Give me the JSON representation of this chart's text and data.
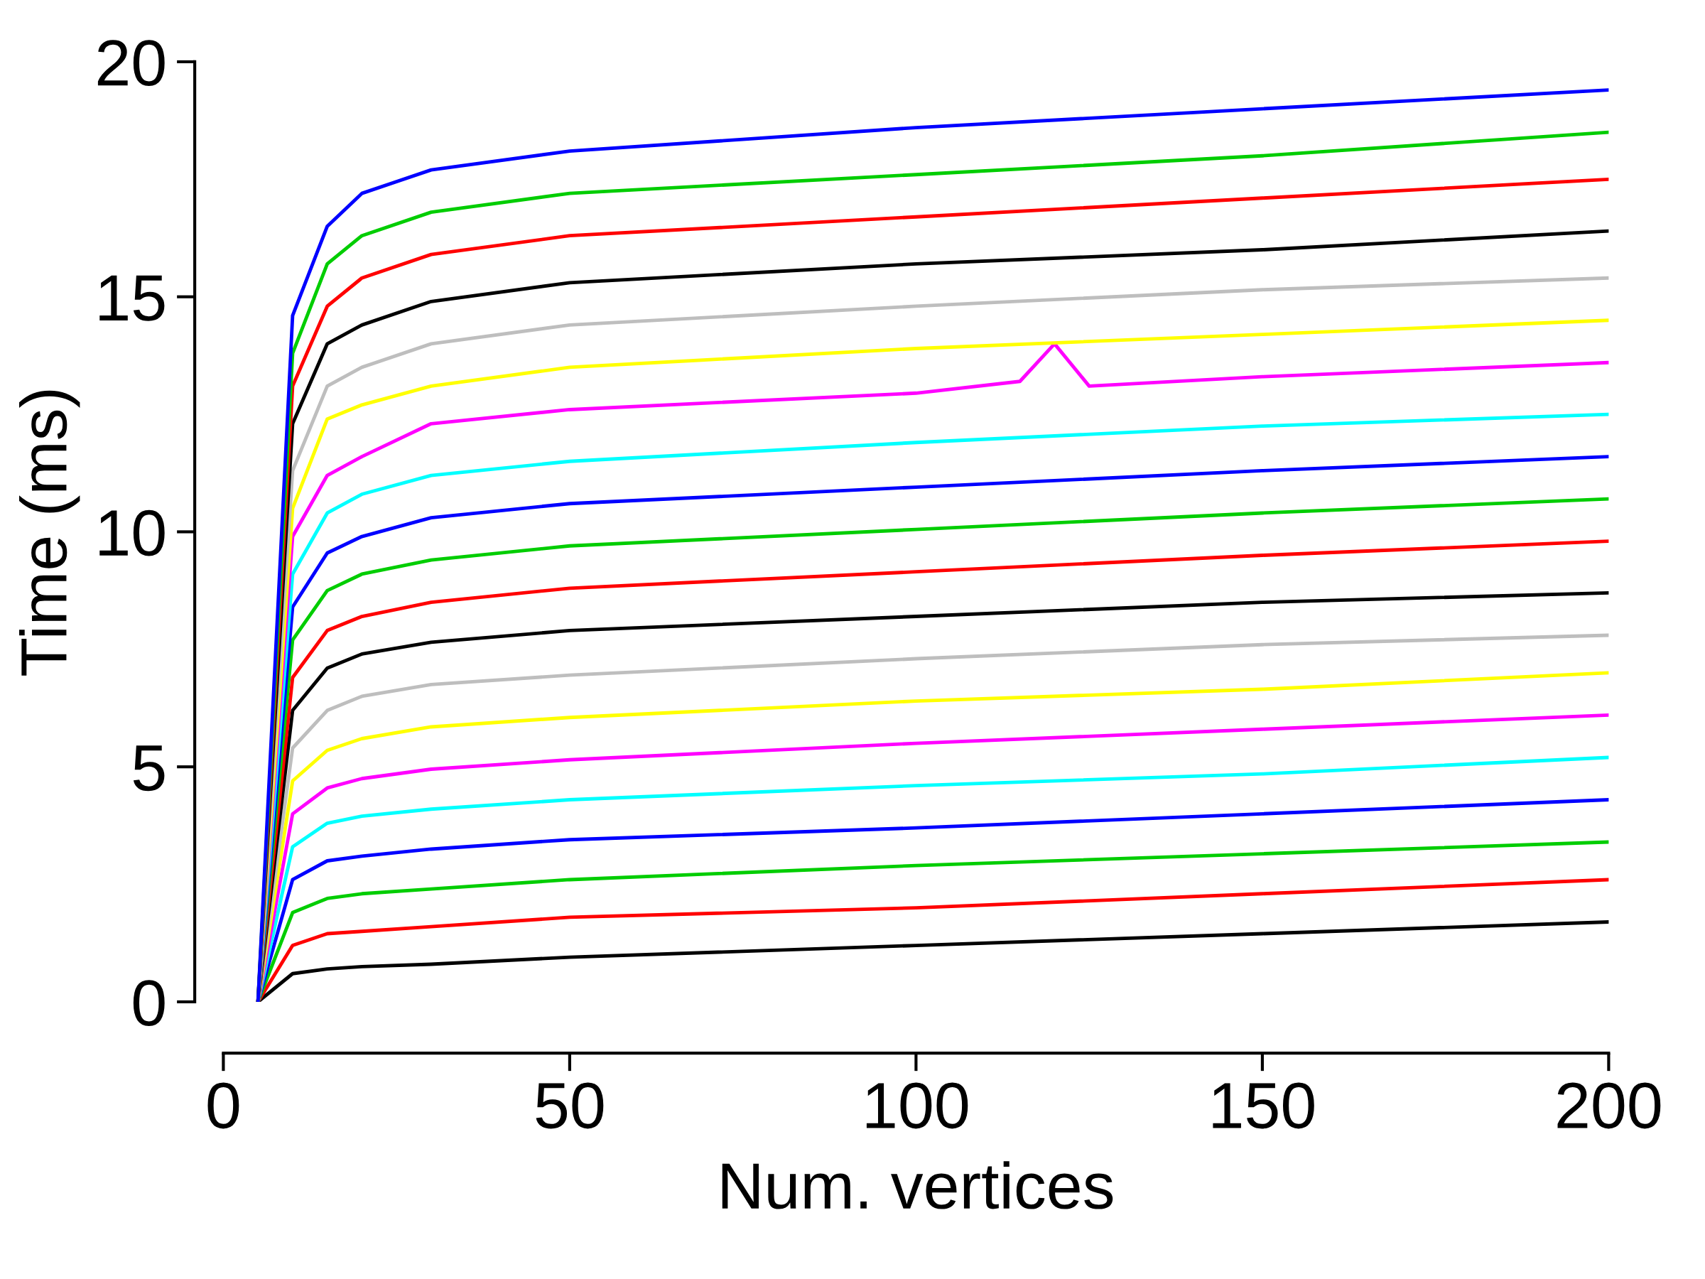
{
  "chart_data": {
    "type": "line",
    "xlabel": "Num. vertices",
    "ylabel": "Time (ms)",
    "xlim": [
      0,
      200
    ],
    "ylim": [
      0,
      20
    ],
    "xticks": [
      0,
      50,
      100,
      150,
      200
    ],
    "yticks": [
      0,
      5,
      10,
      15,
      20
    ],
    "grid": false,
    "legend": false,
    "marker": "none",
    "line_style": "solid",
    "x": [
      5,
      10,
      15,
      20,
      30,
      50,
      100,
      150,
      200
    ],
    "series": [
      {
        "color": "#000000",
        "values": [
          0,
          0.6,
          0.7,
          0.75,
          0.8,
          0.95,
          1.2,
          1.45,
          1.7
        ]
      },
      {
        "color": "#ff0000",
        "values": [
          0,
          1.2,
          1.45,
          1.5,
          1.6,
          1.8,
          2.0,
          2.3,
          2.6
        ]
      },
      {
        "color": "#00cd00",
        "values": [
          0,
          1.9,
          2.2,
          2.3,
          2.4,
          2.6,
          2.9,
          3.15,
          3.4
        ]
      },
      {
        "color": "#0000ff",
        "values": [
          0,
          2.6,
          3.0,
          3.1,
          3.25,
          3.45,
          3.7,
          4.0,
          4.3
        ]
      },
      {
        "color": "#00ffff",
        "values": [
          0,
          3.3,
          3.8,
          3.95,
          4.1,
          4.3,
          4.6,
          4.85,
          5.2
        ]
      },
      {
        "color": "#ff00ff",
        "values": [
          0,
          4.0,
          4.55,
          4.75,
          4.95,
          5.15,
          5.5,
          5.8,
          6.1
        ]
      },
      {
        "color": "#ffff00",
        "values": [
          0,
          4.7,
          5.35,
          5.6,
          5.85,
          6.05,
          6.4,
          6.65,
          7.0
        ]
      },
      {
        "color": "#bebebe",
        "values": [
          0,
          5.4,
          6.2,
          6.5,
          6.75,
          6.95,
          7.3,
          7.6,
          7.8
        ]
      },
      {
        "color": "#000000",
        "values": [
          0,
          6.2,
          7.1,
          7.4,
          7.65,
          7.9,
          8.2,
          8.5,
          8.7
        ]
      },
      {
        "color": "#ff0000",
        "values": [
          0,
          6.9,
          7.9,
          8.2,
          8.5,
          8.8,
          9.15,
          9.5,
          9.8
        ]
      },
      {
        "color": "#00cd00",
        "values": [
          0,
          7.7,
          8.75,
          9.1,
          9.4,
          9.7,
          10.05,
          10.4,
          10.7
        ]
      },
      {
        "color": "#0000ff",
        "values": [
          0,
          8.4,
          9.55,
          9.9,
          10.3,
          10.6,
          10.95,
          11.3,
          11.6
        ]
      },
      {
        "color": "#00ffff",
        "values": [
          0,
          9.1,
          10.4,
          10.8,
          11.2,
          11.5,
          11.9,
          12.25,
          12.5
        ]
      },
      {
        "color": "#ff00ff",
        "x": [
          5,
          10,
          15,
          20,
          30,
          50,
          100,
          115,
          120,
          125,
          150,
          200
        ],
        "values": [
          0,
          9.9,
          11.2,
          11.6,
          12.3,
          12.6,
          12.95,
          13.2,
          14.0,
          13.1,
          13.3,
          13.6
        ]
      },
      {
        "color": "#ffff00",
        "values": [
          0,
          10.5,
          12.4,
          12.7,
          13.1,
          13.5,
          13.9,
          14.2,
          14.5
        ]
      },
      {
        "color": "#bebebe",
        "values": [
          0,
          11.3,
          13.1,
          13.5,
          14.0,
          14.4,
          14.8,
          15.15,
          15.4
        ]
      },
      {
        "color": "#000000",
        "values": [
          0,
          12.3,
          14.0,
          14.4,
          14.9,
          15.3,
          15.7,
          16.0,
          16.4
        ]
      },
      {
        "color": "#ff0000",
        "values": [
          0,
          13.1,
          14.8,
          15.4,
          15.9,
          16.3,
          16.7,
          17.1,
          17.5
        ]
      },
      {
        "color": "#00cd00",
        "values": [
          0,
          13.8,
          15.7,
          16.3,
          16.8,
          17.2,
          17.6,
          18.0,
          18.5
        ]
      },
      {
        "color": "#0000ff",
        "values": [
          0,
          14.6,
          16.5,
          17.2,
          17.7,
          18.1,
          18.6,
          19.0,
          19.4
        ]
      }
    ]
  }
}
